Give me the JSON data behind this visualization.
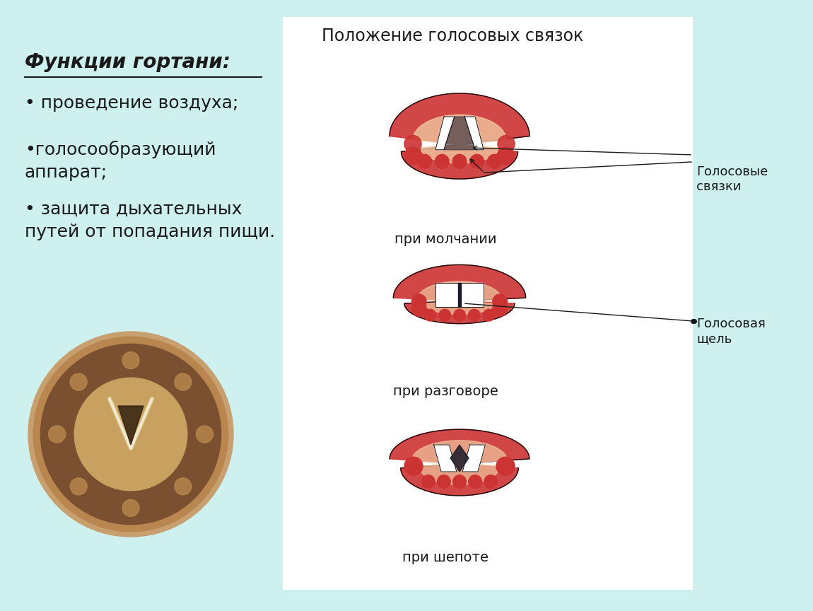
{
  "bg_color": "#cef0ef",
  "title_text": "Функции гортани:",
  "bullet1": "• проведение воздуха;",
  "bullet2": "•голосообразующий\nаппарат;",
  "bullet3": "• защита дыхательных\nпутей от попадания пищи.",
  "diagram_title": "Положение голосовых связок",
  "label1": "Голосовые\nсвязки",
  "label2": "Голосовая\nщель",
  "caption1": "при молчании",
  "caption2": "при разговоре",
  "caption3": "при шепоте",
  "text_color": "#1a1a1a",
  "font_size_title": 20,
  "font_size_bullet": 18,
  "font_size_diagram_title": 17,
  "font_size_caption": 14,
  "font_size_label": 13
}
